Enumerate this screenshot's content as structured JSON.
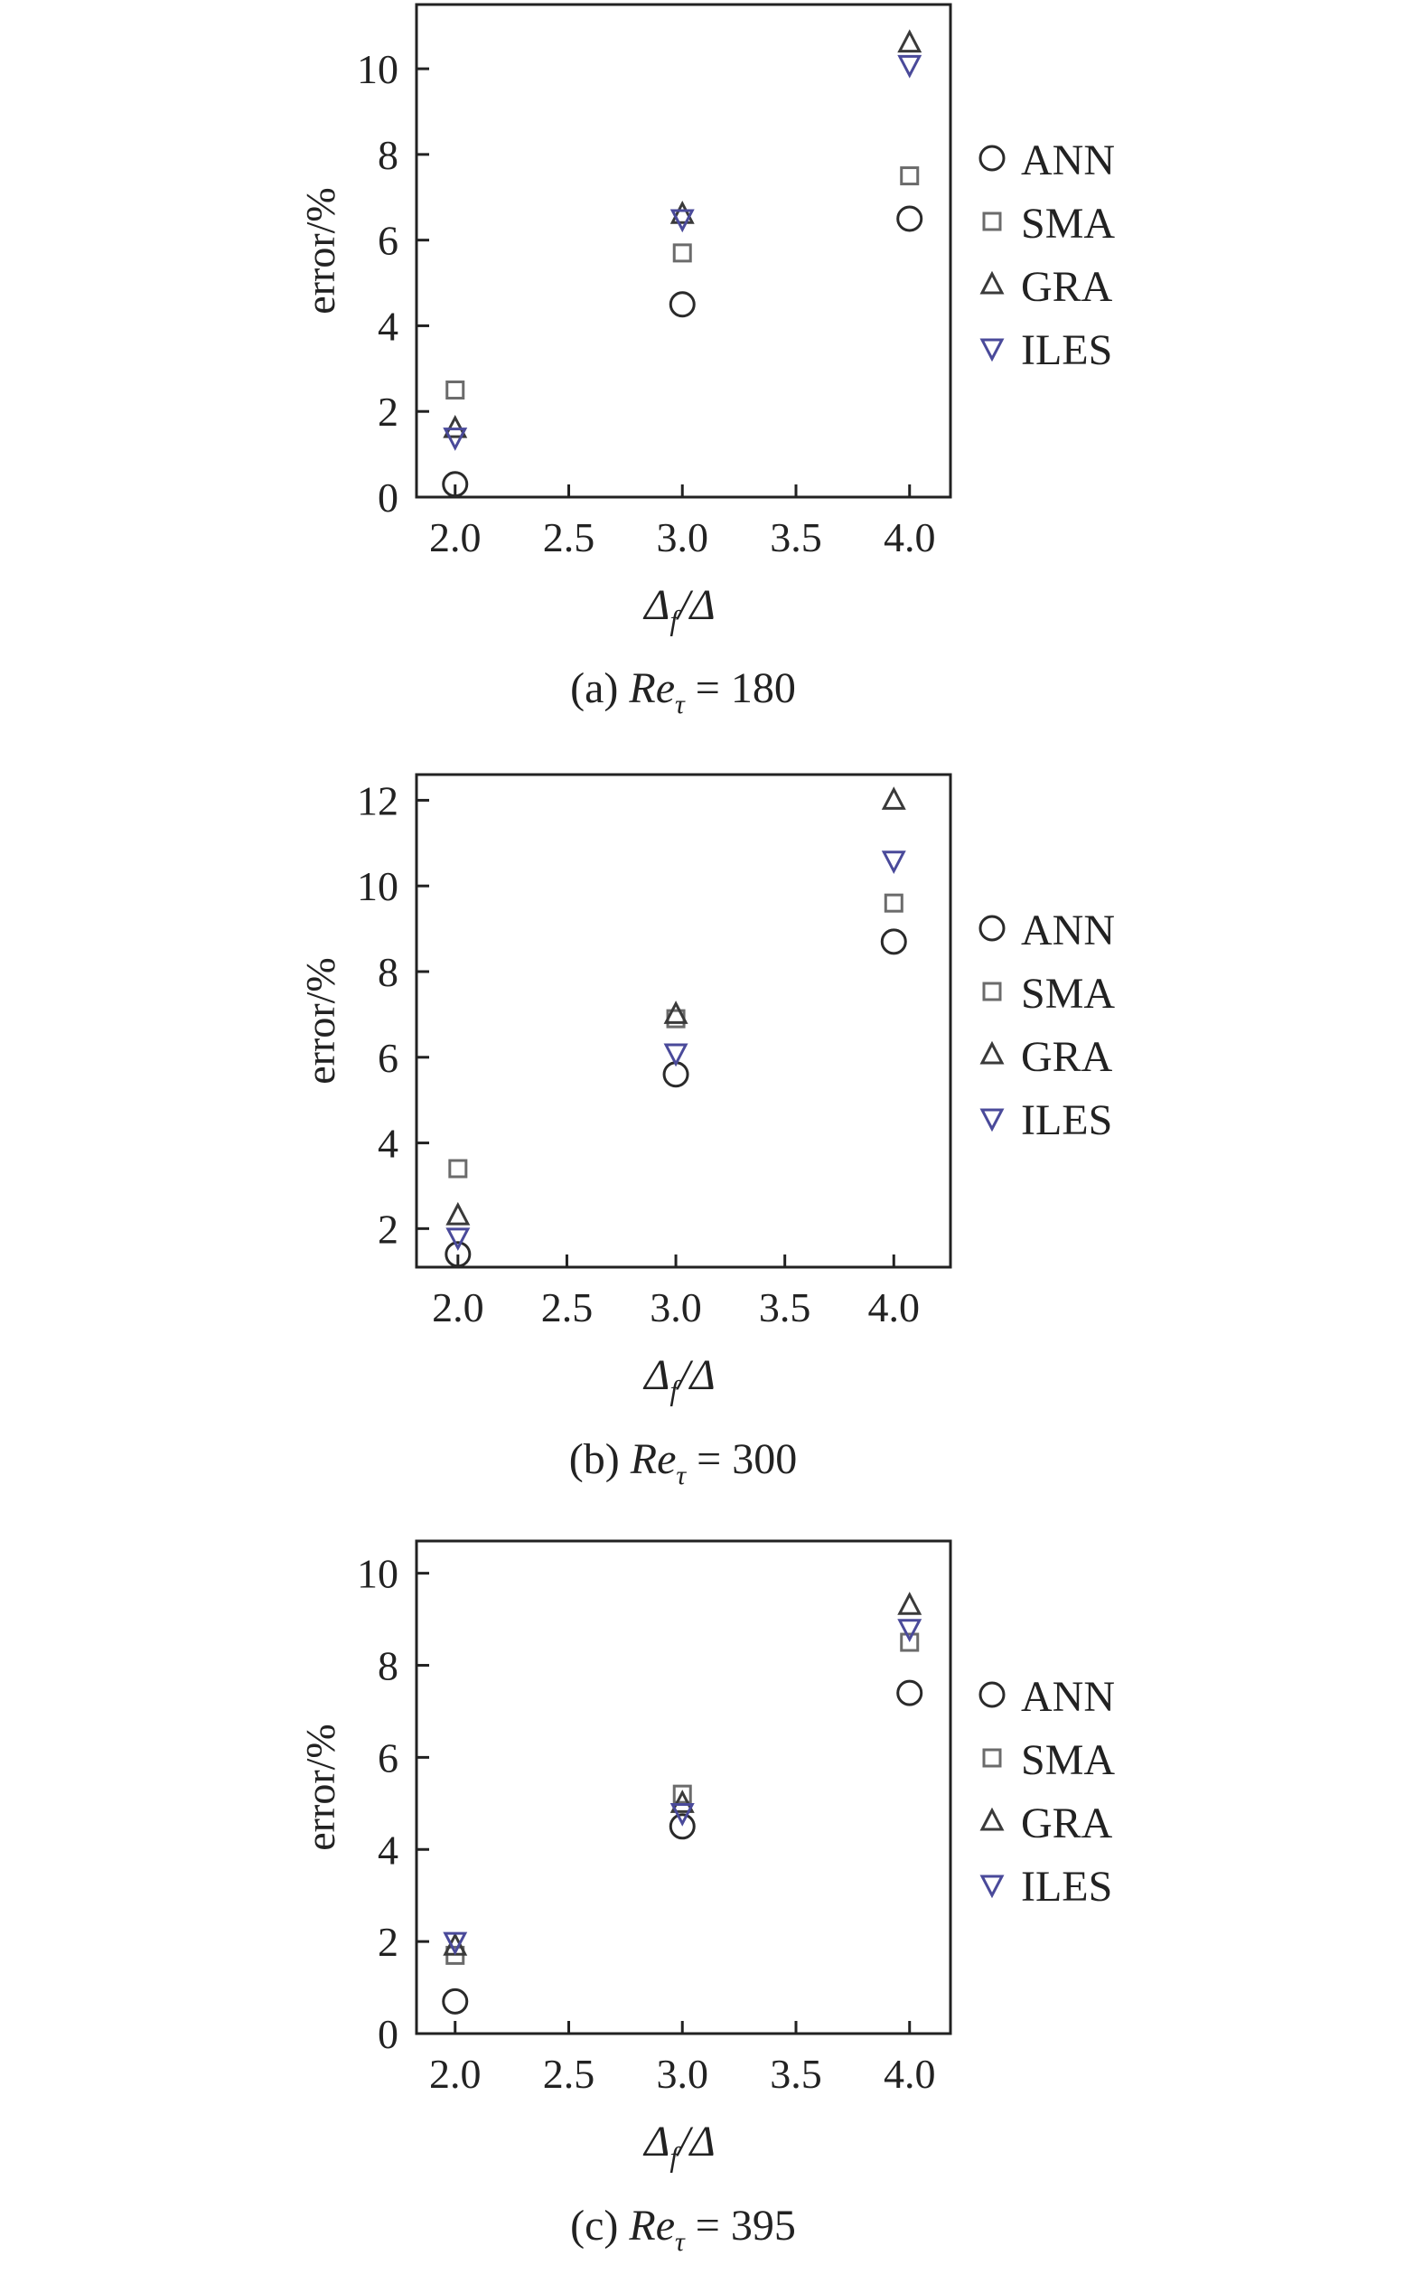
{
  "chart_data": [
    {
      "type": "scatter",
      "caption_prefix": "(a) ",
      "caption_var": "Re",
      "caption_sub": "τ",
      "caption_value": " = 180",
      "xlabel": "Δ",
      "xlabel_sub": "f",
      "xlabel_tail": "/Δ",
      "ylabel": "error/%",
      "xlim": [
        1.83,
        4.18
      ],
      "ylim": [
        0,
        11.5
      ],
      "xticks": [
        2.0,
        2.5,
        3.0,
        3.5,
        4.0
      ],
      "xtick_labels": [
        "2.0",
        "2.5",
        "3.0",
        "3.5",
        "4.0"
      ],
      "yticks": [
        0,
        2,
        4,
        6,
        8,
        10
      ],
      "ytick_labels": [
        "0",
        "2",
        "4",
        "6",
        "8",
        "10"
      ],
      "grid": false,
      "legend_position": "right",
      "series": [
        {
          "name": "ANN",
          "marker": "circle",
          "x": [
            2.0,
            3.0,
            4.0
          ],
          "y": [
            0.3,
            4.5,
            6.5
          ]
        },
        {
          "name": "SMA",
          "marker": "square",
          "x": [
            2.0,
            3.0,
            4.0
          ],
          "y": [
            2.5,
            5.7,
            7.5
          ]
        },
        {
          "name": "GRA",
          "marker": "triangle-up",
          "x": [
            2.0,
            3.0,
            4.0
          ],
          "y": [
            1.6,
            6.6,
            10.6
          ]
        },
        {
          "name": "ILES",
          "marker": "triangle-down",
          "x": [
            2.0,
            3.0,
            4.0
          ],
          "y": [
            1.4,
            6.5,
            10.1
          ]
        }
      ]
    },
    {
      "type": "scatter",
      "caption_prefix": "(b) ",
      "caption_var": "Re",
      "caption_sub": "τ",
      "caption_value": " = 300",
      "xlabel": "Δ",
      "xlabel_sub": "f",
      "xlabel_tail": "/Δ",
      "ylabel": "error/%",
      "xlim": [
        1.81,
        4.26
      ],
      "ylim": [
        1.1,
        12.6
      ],
      "xticks": [
        2.0,
        2.5,
        3.0,
        3.5,
        4.0
      ],
      "xtick_labels": [
        "2.0",
        "2.5",
        "3.0",
        "3.5",
        "4.0"
      ],
      "yticks": [
        2,
        4,
        6,
        8,
        10,
        12
      ],
      "ytick_labels": [
        "2",
        "4",
        "6",
        "8",
        "10",
        "12"
      ],
      "grid": false,
      "legend_position": "right",
      "series": [
        {
          "name": "ANN",
          "marker": "circle",
          "x": [
            2.0,
            3.0,
            4.0
          ],
          "y": [
            1.4,
            5.6,
            8.7
          ]
        },
        {
          "name": "SMA",
          "marker": "square",
          "x": [
            2.0,
            3.0,
            4.0
          ],
          "y": [
            3.4,
            6.9,
            9.6
          ]
        },
        {
          "name": "GRA",
          "marker": "triangle-up",
          "x": [
            2.0,
            3.0,
            4.0
          ],
          "y": [
            2.3,
            7.0,
            12.0
          ]
        },
        {
          "name": "ILES",
          "marker": "triangle-down",
          "x": [
            2.0,
            3.0,
            4.0
          ],
          "y": [
            1.8,
            6.1,
            10.6
          ]
        }
      ]
    },
    {
      "type": "scatter",
      "caption_prefix": "(c) ",
      "caption_var": "Re",
      "caption_sub": "τ",
      "caption_value": " = 395",
      "xlabel": "Δ",
      "xlabel_sub": "f",
      "xlabel_tail": "/Δ",
      "ylabel": "error/%",
      "xlim": [
        1.83,
        4.18
      ],
      "ylim": [
        0,
        10.7
      ],
      "xticks": [
        2.0,
        2.5,
        3.0,
        3.5,
        4.0
      ],
      "xtick_labels": [
        "2.0",
        "2.5",
        "3.0",
        "3.5",
        "4.0"
      ],
      "yticks": [
        0,
        2,
        4,
        6,
        8,
        10
      ],
      "ytick_labels": [
        "0",
        "2",
        "4",
        "6",
        "8",
        "10"
      ],
      "grid": false,
      "legend_position": "right",
      "series": [
        {
          "name": "ANN",
          "marker": "circle",
          "x": [
            2.0,
            3.0,
            4.0
          ],
          "y": [
            0.7,
            4.5,
            7.4
          ]
        },
        {
          "name": "SMA",
          "marker": "square",
          "x": [
            2.0,
            3.0,
            4.0
          ],
          "y": [
            1.7,
            5.2,
            8.5
          ]
        },
        {
          "name": "GRA",
          "marker": "triangle-up",
          "x": [
            2.0,
            3.0,
            4.0
          ],
          "y": [
            1.9,
            5.0,
            9.3
          ]
        },
        {
          "name": "ILES",
          "marker": "triangle-down",
          "x": [
            2.0,
            3.0,
            4.0
          ],
          "y": [
            2.0,
            4.8,
            8.8
          ]
        }
      ]
    }
  ],
  "colors": {
    "ANN": "#2a2a2a",
    "SMA": "#6b6b6b",
    "GRA": "#3a3a3a",
    "ILES": "#4a4a9a",
    "axis": "#222222"
  }
}
